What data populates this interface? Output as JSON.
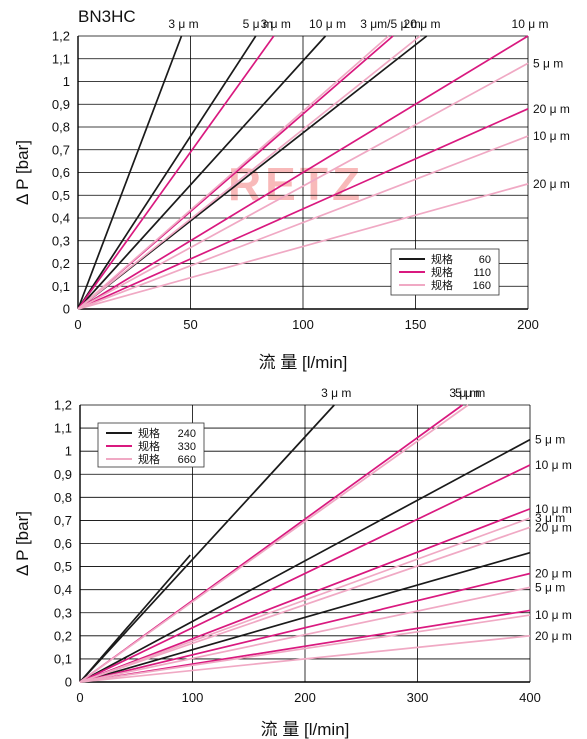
{
  "colors": {
    "black": "#1a1a1a",
    "magenta": "#d9197f",
    "pink": "#f0a9c4",
    "grid": "#000000"
  },
  "watermark": "RETZ",
  "chart_data": [
    {
      "type": "line",
      "title": "BN3HC",
      "xlabel": "流 量 [l/min]",
      "ylabel": "Δ P [bar]",
      "xlim": [
        0,
        200
      ],
      "ylim": [
        0,
        1.2
      ],
      "x_ticks": [
        "0",
        "50",
        "100",
        "150",
        "200"
      ],
      "y_ticks": [
        "0",
        "0,1",
        "0,2",
        "0,3",
        "0,4",
        "0,5",
        "0,6",
        "0,7",
        "0,8",
        "0,9",
        "1",
        "1,1",
        "1,2"
      ],
      "grid": true,
      "legend": {
        "placement": "bottom-right",
        "entries": [
          {
            "spec": "规格",
            "value": "60",
            "color": "#1a1a1a"
          },
          {
            "spec": "规格",
            "value": "110",
            "color": "#d9197f"
          },
          {
            "spec": "规格",
            "value": "160",
            "color": "#f0a9c4"
          }
        ]
      },
      "series": [
        {
          "label": "3 μ m",
          "group": "60",
          "color": "#1a1a1a",
          "x_end": 46,
          "y_end": 1.2,
          "label_side": "top"
        },
        {
          "label": "5 μ m",
          "group": "60",
          "color": "#1a1a1a",
          "x_end": 79,
          "y_end": 1.2,
          "label_side": "top"
        },
        {
          "label": "10 μ m",
          "group": "60",
          "color": "#1a1a1a",
          "x_end": 110,
          "y_end": 1.2,
          "label_side": "top"
        },
        {
          "label": "",
          "group": "60",
          "color": "#1a1a1a",
          "x_end": 155,
          "y_end": 1.2,
          "label_side": "none"
        },
        {
          "label": "3 μ m",
          "group": "110",
          "color": "#d9197f",
          "x_end": 87,
          "y_end": 1.2,
          "label_side": "top"
        },
        {
          "label": "",
          "group": "110",
          "color": "#d9197f",
          "x_end": 140,
          "y_end": 1.2,
          "label_side": "none"
        },
        {
          "label": "10 μ m",
          "group": "110",
          "color": "#d9197f",
          "x_end": 200,
          "y_end": 1.2,
          "label_side": "top"
        },
        {
          "label": "20 μ m",
          "group": "110",
          "color": "#d9197f",
          "x_end": 200,
          "y_end": 0.88,
          "label_side": "right"
        },
        {
          "label": "3 μm/5 μ m",
          "group": "160",
          "color": "#f0a9c4",
          "x_end": 138,
          "y_end": 1.2,
          "label_side": "top"
        },
        {
          "label": "20 μ m",
          "group": "160",
          "color": "#f0a9c4",
          "x_end": 152,
          "y_end": 1.2,
          "label_side": "top"
        },
        {
          "label": "5 μ m",
          "group": "160",
          "color": "#f0a9c4",
          "x_end": 200,
          "y_end": 1.08,
          "label_side": "right"
        },
        {
          "label": "10 μ m",
          "group": "160",
          "color": "#f0a9c4",
          "x_end": 200,
          "y_end": 0.76,
          "label_side": "right"
        },
        {
          "label": "20 μ m",
          "group": "160",
          "color": "#f0a9c4",
          "x_end": 200,
          "y_end": 0.55,
          "label_side": "right"
        }
      ]
    },
    {
      "type": "line",
      "title": "",
      "xlabel": "流 量 [l/min]",
      "ylabel": "Δ P [bar]",
      "xlim": [
        0,
        400
      ],
      "ylim": [
        0,
        1.2
      ],
      "x_ticks": [
        "0",
        "100",
        "200",
        "300",
        "400"
      ],
      "y_ticks": [
        "0",
        "0,1",
        "0,2",
        "0,3",
        "0,4",
        "0,5",
        "0,6",
        "0,7",
        "0,8",
        "0,9",
        "1",
        "1,1",
        "1,2"
      ],
      "grid": true,
      "legend": {
        "placement": "top-left",
        "entries": [
          {
            "spec": "规格",
            "value": "240",
            "color": "#1a1a1a"
          },
          {
            "spec": "规格",
            "value": "330",
            "color": "#d9197f"
          },
          {
            "spec": "规格",
            "value": "660",
            "color": "#f0a9c4"
          }
        ]
      },
      "series": [
        {
          "label": "",
          "group": "240",
          "color": "#1a1a1a",
          "x_end": 98,
          "y_end": 0.55,
          "label_side": "none"
        },
        {
          "label": "3 μ m",
          "group": "240",
          "color": "#1a1a1a",
          "x_end": 226,
          "y_end": 1.2,
          "label_side": "top"
        },
        {
          "label": "5 μ m",
          "group": "240",
          "color": "#1a1a1a",
          "x_end": 400,
          "y_end": 1.05,
          "label_side": "right"
        },
        {
          "label": "",
          "group": "240",
          "color": "#1a1a1a",
          "x_end": 400,
          "y_end": 0.56,
          "label_side": "none"
        },
        {
          "label": "3 μ m",
          "group": "330",
          "color": "#d9197f",
          "x_end": 340,
          "y_end": 1.2,
          "label_side": "top"
        },
        {
          "label": "10 μ m",
          "group": "330",
          "color": "#d9197f",
          "x_end": 400,
          "y_end": 0.94,
          "label_side": "right"
        },
        {
          "label": "10 μ m",
          "group": "330",
          "color": "#d9197f",
          "x_end": 400,
          "y_end": 0.75,
          "label_side": "right"
        },
        {
          "label": "20 μ m",
          "group": "330",
          "color": "#d9197f",
          "x_end": 400,
          "y_end": 0.47,
          "label_side": "right"
        },
        {
          "label": "",
          "group": "330",
          "color": "#d9197f",
          "x_end": 400,
          "y_end": 0.31,
          "label_side": "none"
        },
        {
          "label": "5 μ m",
          "group": "660",
          "color": "#f0a9c4",
          "x_end": 345,
          "y_end": 1.2,
          "label_side": "top"
        },
        {
          "label": "3 μ m",
          "group": "660",
          "color": "#f0a9c4",
          "x_end": 400,
          "y_end": 0.71,
          "label_side": "right"
        },
        {
          "label": "20 μ m",
          "group": "660",
          "color": "#f0a9c4",
          "x_end": 400,
          "y_end": 0.67,
          "label_side": "right"
        },
        {
          "label": "5 μ m",
          "group": "660",
          "color": "#f0a9c4",
          "x_end": 400,
          "y_end": 0.41,
          "label_side": "right"
        },
        {
          "label": "10 μ m",
          "group": "660",
          "color": "#f0a9c4",
          "x_end": 400,
          "y_end": 0.29,
          "label_side": "right"
        },
        {
          "label": "20 μ m",
          "group": "660",
          "color": "#f0a9c4",
          "x_end": 400,
          "y_end": 0.2,
          "label_side": "right"
        }
      ]
    }
  ]
}
